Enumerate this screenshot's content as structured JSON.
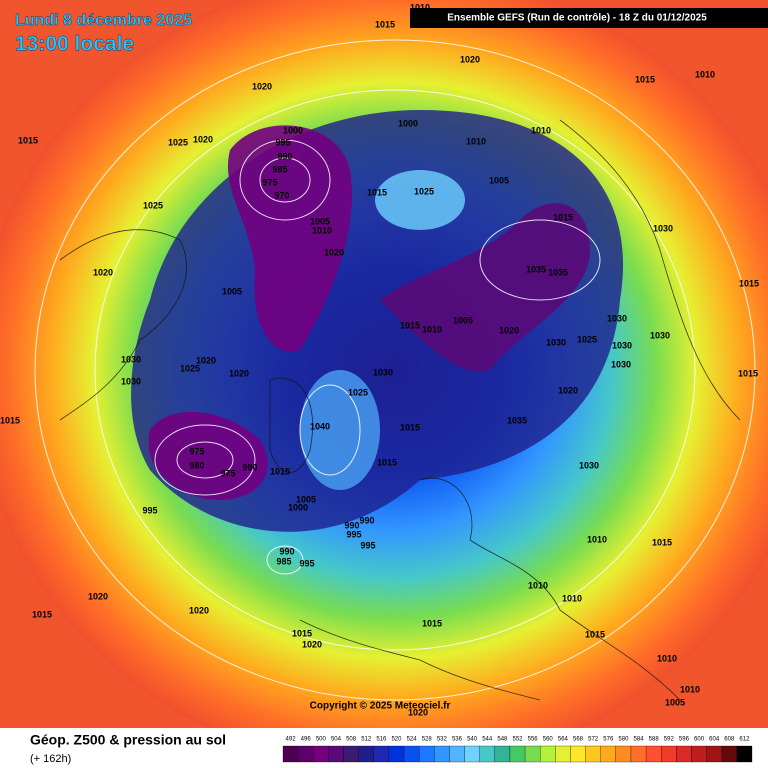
{
  "header": {
    "date": "Lundi 8 décembre 2025",
    "time": "13:00 locale",
    "run": "Ensemble GEFS  (Run de contrôle)  -  18 Z du 01/12/2025"
  },
  "map": {
    "pressure_labels": [
      1010,
      1015,
      1020,
      1015,
      1010,
      1020,
      1015,
      1025,
      1020,
      1000,
      995,
      990,
      985,
      975,
      970,
      1000,
      1010,
      1010,
      1005,
      1015,
      1025,
      1025,
      1005,
      1010,
      1015,
      1030,
      1020,
      1020,
      1035,
      1035,
      1005,
      1015,
      1005,
      1010,
      1015,
      1020,
      1030,
      1030,
      1025,
      1030,
      1030,
      1030,
      1020,
      1025,
      1020,
      1030,
      1030,
      1030,
      1025,
      1020,
      1015,
      1040,
      1015,
      1035,
      975,
      980,
      990,
      975,
      1015,
      1015,
      1030,
      1005,
      1000,
      995,
      990,
      990,
      995,
      995,
      1010,
      990,
      985,
      995,
      1015,
      1010,
      1010,
      1020,
      1020,
      1015,
      1015,
      1015,
      1020,
      1015,
      1010,
      1010,
      1005,
      1020,
      1015
    ],
    "copyright": "Copyright © 2025 Meteociel.fr"
  },
  "footer": {
    "title": "Géop. Z500 & pression au sol",
    "lead": "(+ 162h)",
    "scale": {
      "values": [
        492,
        496,
        500,
        504,
        508,
        512,
        516,
        520,
        524,
        528,
        532,
        536,
        540,
        544,
        548,
        552,
        556,
        560,
        564,
        568,
        572,
        576,
        580,
        584,
        588,
        592,
        596,
        600,
        604,
        608,
        612
      ],
      "colors": [
        "#4b0050",
        "#5e006a",
        "#72007f",
        "#5a0a78",
        "#3c1a70",
        "#1e1e8c",
        "#1e28b4",
        "#0032dc",
        "#0a50f0",
        "#1e78ff",
        "#3296ff",
        "#50b4ff",
        "#6ed2ff",
        "#46c8c8",
        "#32b496",
        "#46c864",
        "#78dc50",
        "#b4f03c",
        "#e6f032",
        "#ffe628",
        "#ffc81e",
        "#ffaa1e",
        "#ff8c1e",
        "#ff6e28",
        "#ff5032",
        "#f03c28",
        "#dc2828",
        "#be1e1e",
        "#a01414",
        "#640a0a",
        "#000000"
      ]
    }
  }
}
